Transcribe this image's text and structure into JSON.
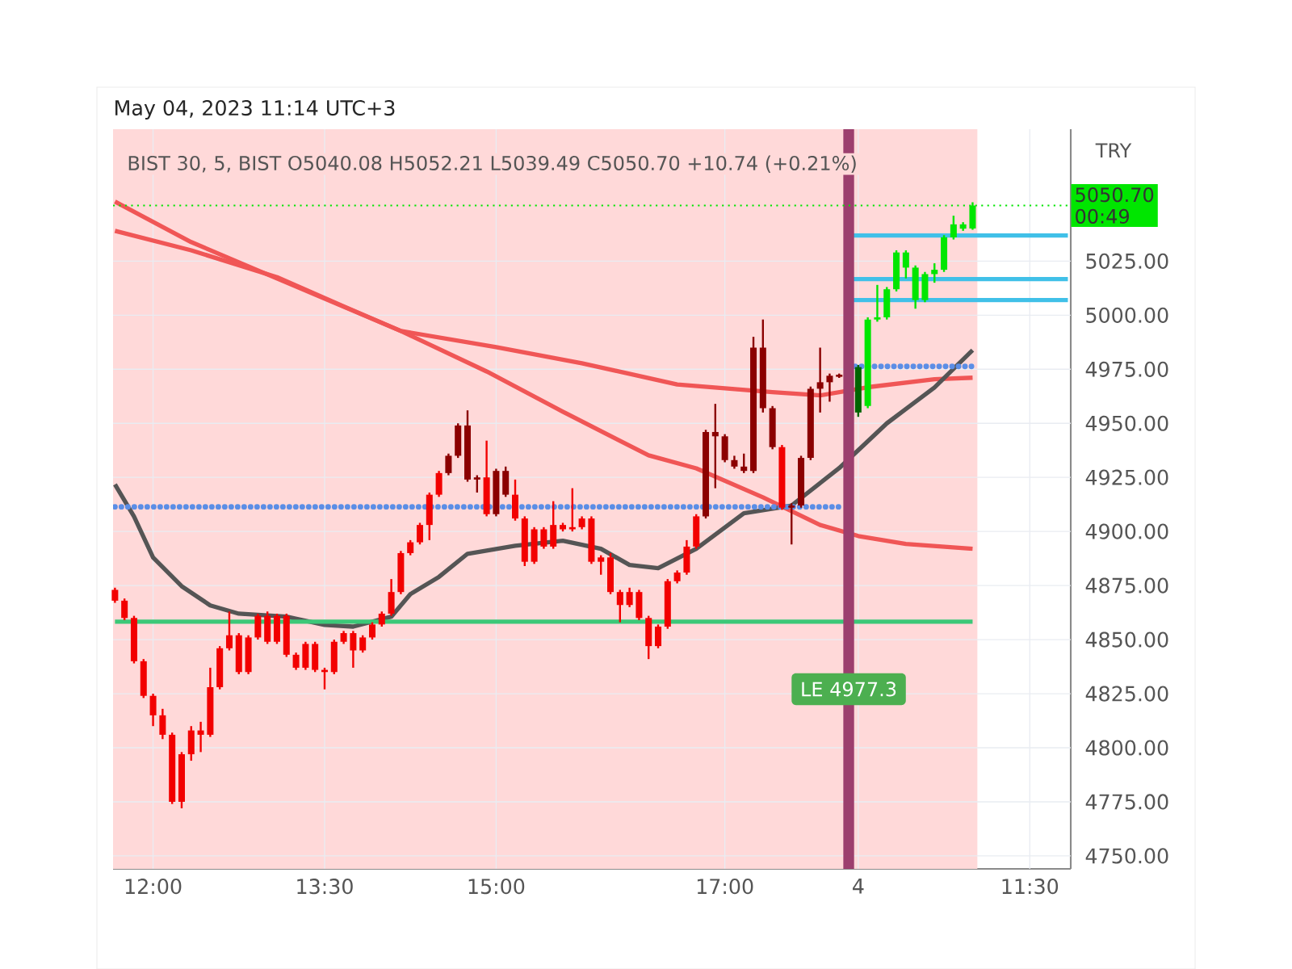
{
  "chart_data": {
    "type": "candlestick",
    "annotations": [
      "May 04, 2023 11:14 UTC+3",
      "BIST 30, 5, BIST  O5040.08  H5052.21  L5039.49  C5050.70  +10.74 (+0.21%)",
      "LE 4977.3",
      "00:49"
    ],
    "ylabel": "TRY",
    "categories": [
      null,
      null,
      null,
      null,
      "12:00",
      null,
      null,
      null,
      null,
      null,
      null,
      null,
      null,
      null,
      null,
      null,
      null,
      null,
      null,
      null,
      null,
      null,
      "13:30",
      null,
      null,
      null,
      null,
      null,
      null,
      null,
      null,
      null,
      null,
      null,
      null,
      null,
      null,
      null,
      null,
      null,
      "15:00",
      null,
      null,
      null,
      null,
      null,
      null,
      null,
      null,
      null,
      null,
      null,
      null,
      null,
      null,
      null,
      null,
      null,
      null,
      null,
      null,
      null,
      null,
      null,
      "17:00",
      null,
      null,
      null,
      null,
      null,
      null,
      null,
      null,
      null,
      null,
      null,
      null,
      null,
      "4",
      null,
      null,
      null,
      null,
      null,
      null,
      null,
      null,
      null,
      null,
      null,
      null,
      null,
      null,
      null,
      null,
      null,
      "11:30",
      null,
      null,
      null,
      null
    ],
    "ohlc": [
      [
        4873,
        4874,
        4867,
        4868
      ],
      [
        4868,
        4869,
        4859,
        4860
      ],
      [
        4860,
        4861,
        4839,
        4840
      ],
      [
        4840,
        4841,
        4823,
        4824
      ],
      [
        4824,
        4825,
        4810,
        4815
      ],
      [
        4815,
        4818,
        4804,
        4806
      ],
      [
        4806,
        4807,
        4774,
        4775
      ],
      [
        4797,
        4798,
        4772,
        4775
      ],
      [
        4808,
        4810,
        4794,
        4797
      ],
      [
        4808,
        4812,
        4798,
        4806
      ],
      [
        4828,
        4837,
        4805,
        4806
      ],
      [
        4846,
        4847,
        4827,
        4828
      ],
      [
        4852,
        4863,
        4845,
        4846
      ],
      [
        4852,
        4853,
        4834,
        4835
      ],
      [
        4851,
        4852,
        4834,
        4835
      ],
      [
        4861,
        4862,
        4850,
        4851
      ],
      [
        4861,
        4863,
        4848,
        4849
      ],
      [
        4861,
        4862,
        4848,
        4849
      ],
      [
        4861,
        4862,
        4842,
        4843
      ],
      [
        4843,
        4844,
        4836,
        4837
      ],
      [
        4848,
        4849,
        4836,
        4837
      ],
      [
        4848,
        4849,
        4835,
        4836
      ],
      [
        4836,
        4837,
        4827,
        4835
      ],
      [
        4849,
        4850,
        4834,
        4835
      ],
      [
        4853,
        4854,
        4848,
        4849
      ],
      [
        4853,
        4854,
        4837,
        4845
      ],
      [
        4851,
        4852,
        4844,
        4845
      ],
      [
        4857,
        4858,
        4850,
        4851
      ],
      [
        4862,
        4863,
        4856,
        4857
      ],
      [
        4872,
        4878,
        4861,
        4862
      ],
      [
        4890,
        4891,
        4871,
        4872
      ],
      [
        4895,
        4896,
        4889,
        4890
      ],
      [
        4903,
        4904,
        4894,
        4895
      ],
      [
        4917,
        4918,
        4896,
        4903
      ],
      [
        4927,
        4928,
        4916,
        4917
      ],
      [
        4927,
        4936,
        4926,
        4935
      ],
      [
        4935,
        4950,
        4934,
        4949
      ],
      [
        4924,
        4956,
        4923,
        4949
      ],
      [
        4924,
        4926,
        4918,
        4925
      ],
      [
        4925,
        4942,
        4907,
        4908
      ],
      [
        4908,
        4929,
        4907,
        4928
      ],
      [
        4917,
        4930,
        4916,
        4928
      ],
      [
        4917,
        4924,
        4905,
        4906
      ],
      [
        4906,
        4907,
        4884,
        4886
      ],
      [
        4901,
        4902,
        4885,
        4886
      ],
      [
        4901,
        4902,
        4892,
        4893
      ],
      [
        4903,
        4914,
        4892,
        4893
      ],
      [
        4903,
        4904,
        4900,
        4901
      ],
      [
        4902,
        4920,
        4900,
        4901
      ],
      [
        4906,
        4907,
        4901,
        4902
      ],
      [
        4906,
        4907,
        4885,
        4886
      ],
      [
        4888,
        4889,
        4880,
        4886
      ],
      [
        4888,
        4890,
        4871,
        4872
      ],
      [
        4872,
        4873,
        4858,
        4866
      ],
      [
        4872,
        4874,
        4865,
        4866
      ],
      [
        4872,
        4873,
        4859,
        4860
      ],
      [
        4860,
        4861,
        4841,
        4847
      ],
      [
        4856,
        4857,
        4846,
        4847
      ],
      [
        4877,
        4878,
        4855,
        4856
      ],
      [
        4881,
        4882,
        4876,
        4877
      ],
      [
        4893,
        4896,
        4880,
        4881
      ],
      [
        4907,
        4908,
        4892,
        4893
      ],
      [
        4907,
        4947,
        4906,
        4946
      ],
      [
        4944,
        4959,
        4920,
        4946
      ],
      [
        4933,
        4945,
        4932,
        4944
      ],
      [
        4930,
        4935,
        4929,
        4933
      ],
      [
        4928,
        4936,
        4927,
        4930
      ],
      [
        4928,
        4990,
        4927,
        4985
      ],
      [
        4957,
        4998,
        4955,
        4985
      ],
      [
        4939,
        4958,
        4938,
        4957
      ],
      [
        4939,
        4940,
        4910,
        4911
      ],
      [
        4911,
        4913,
        4894,
        4912
      ],
      [
        4912,
        4935,
        4911,
        4934
      ],
      [
        4934,
        4967,
        4933,
        4966
      ],
      [
        4966,
        4985,
        4955,
        4969
      ],
      [
        4969,
        4973,
        4960,
        4972
      ],
      [
        4972,
        4973,
        4971,
        4972
      ],
      null,
      [
        4955,
        4977,
        4953,
        4976
      ],
      [
        4958,
        4999,
        4957,
        4998
      ],
      [
        4998,
        5014,
        4997,
        4999
      ],
      [
        4999,
        5013,
        4998,
        5012
      ],
      [
        5012,
        5030,
        5011,
        5029
      ],
      [
        5022,
        5030,
        5017,
        5029
      ],
      [
        5007,
        5023,
        5003,
        5022
      ],
      [
        5007,
        5020,
        5006,
        5019
      ],
      [
        5019,
        5024,
        5015,
        5021
      ],
      [
        5021,
        5037,
        5020,
        5036
      ],
      [
        5036,
        5046,
        5035,
        5042
      ],
      [
        5040,
        5043,
        5039,
        5042
      ],
      [
        5040.08,
        5052.21,
        5039.49,
        5050.7
      ],
      null,
      null,
      null,
      null,
      null,
      null,
      null,
      null,
      null,
      null
    ],
    "colors": [
      "#f20000",
      "#f20000",
      "#f20000",
      "#f20000",
      "#f20000",
      "#f20000",
      "#f20000",
      "#f20000",
      "#f20000",
      "#f20000",
      "#f20000",
      "#f20000",
      "#f20000",
      "#f20000",
      "#f20000",
      "#f20000",
      "#f20000",
      "#f20000",
      "#f20000",
      "#f20000",
      "#f20000",
      "#f20000",
      "#f20000",
      "#f20000",
      "#f20000",
      "#f20000",
      "#f20000",
      "#f20000",
      "#f20000",
      "#f20000",
      "#f20000",
      "#f20000",
      "#f20000",
      "#f20000",
      "#f20000",
      "#8b0000",
      "#8b0000",
      "#8b0000",
      "#8b0000",
      "#f20000",
      "#8b0000",
      "#8b0000",
      "#f20000",
      "#f20000",
      "#f20000",
      "#f20000",
      "#f20000",
      "#f20000",
      "#f20000",
      "#f20000",
      "#f20000",
      "#f20000",
      "#f20000",
      "#f20000",
      "#f20000",
      "#f20000",
      "#f20000",
      "#f20000",
      "#f20000",
      "#f20000",
      "#f20000",
      "#f20000",
      "#8b0000",
      "#8b0000",
      "#8b0000",
      "#8b0000",
      "#8b0000",
      "#8b0000",
      "#8b0000",
      "#8b0000",
      "#f20000",
      "#8b0000",
      "#8b0000",
      "#8b0000",
      "#8b0000",
      "#8b0000",
      "#8b0000",
      null,
      "#006400",
      "#00e600",
      "#00e600",
      "#00e600",
      "#00e600",
      "#00e600",
      "#00e600",
      "#00e600",
      "#00e600",
      "#00e600",
      "#00e600",
      "#00e600",
      "#00e600",
      null,
      null,
      null,
      null,
      null,
      null,
      null,
      null,
      null,
      null
    ],
    "series": [
      {
        "type": "line",
        "color": "#f05656",
        "line_style": "solid",
        "values": [
          5052.5,
          null,
          null,
          null,
          null,
          null,
          null,
          null,
          5033.8,
          null,
          null,
          null,
          null,
          null,
          null,
          null,
          null,
          null,
          5015.1,
          null,
          null,
          null,
          null,
          null,
          null,
          null,
          null,
          null,
          null,
          null,
          4992.7,
          null,
          null,
          null,
          null,
          null,
          null,
          null,
          null,
          null,
          4985.2,
          null,
          null,
          null,
          null,
          null,
          null,
          null,
          null,
          4977.8,
          null,
          null,
          null,
          null,
          null,
          null,
          null,
          null,
          null,
          4968,
          null,
          null,
          null,
          null,
          null,
          null,
          null,
          null,
          null,
          4964.4,
          null,
          null,
          null,
          null,
          4962.9,
          null,
          null,
          null,
          null,
          4966.7,
          null,
          null,
          null,
          null,
          null,
          null,
          4970.4,
          null,
          null,
          null,
          4971.1,
          null,
          null,
          null,
          null,
          null,
          null,
          null,
          null,
          null,
          null
        ]
      },
      {
        "type": "line",
        "color": "#f05656",
        "line_style": "solid",
        "values": [
          5039,
          null,
          null,
          null,
          null,
          null,
          null,
          null,
          5030,
          null,
          null,
          null,
          null,
          null,
          null,
          null,
          null,
          5017.6,
          null,
          null,
          null,
          null,
          null,
          null,
          5004.1,
          null,
          null,
          null,
          null,
          null,
          4992.7,
          null,
          null,
          null,
          null,
          null,
          null,
          null,
          null,
          4974,
          null,
          null,
          null,
          null,
          null,
          null,
          null,
          4955.4,
          null,
          null,
          null,
          null,
          null,
          null,
          null,
          null,
          4935.2,
          null,
          null,
          null,
          null,
          4929.2,
          null,
          null,
          null,
          null,
          null,
          null,
          4915.8,
          null,
          null,
          null,
          null,
          null,
          4903,
          null,
          null,
          null,
          4897.9,
          null,
          null,
          null,
          null,
          4894.2,
          null,
          null,
          null,
          null,
          null,
          null,
          4892,
          null,
          null,
          null,
          null,
          null,
          null,
          null,
          null,
          null,
          null
        ]
      },
      {
        "type": "line",
        "color": "#555555",
        "line_style": "solid",
        "values": [
          4921.8,
          null,
          4906.9,
          null,
          4888,
          null,
          null,
          4874.7,
          null,
          null,
          4865.8,
          null,
          null,
          4862,
          null,
          null,
          null,
          null,
          4860.6,
          null,
          null,
          null,
          4856.8,
          null,
          null,
          4856,
          null,
          null,
          null,
          4860.6,
          null,
          4871,
          null,
          null,
          4879,
          null,
          null,
          4889.7,
          null,
          null,
          null,
          null,
          4893.4,
          null,
          null,
          null,
          null,
          4895.7,
          null,
          null,
          null,
          4892,
          null,
          null,
          4884.5,
          null,
          null,
          4883,
          null,
          null,
          null,
          4892,
          null,
          null,
          null,
          null,
          4908.4,
          null,
          null,
          null,
          null,
          4912,
          null,
          null,
          null,
          null,
          4929.3,
          null,
          null,
          null,
          null,
          4950,
          null,
          null,
          null,
          null,
          4966.6,
          null,
          null,
          null,
          4983.8,
          null,
          null,
          null,
          null,
          null,
          null,
          null,
          null,
          null,
          null
        ]
      },
      {
        "type": "line",
        "color": "#5b8ee6",
        "line_style": "dotted",
        "values": [
          4911.4,
          null,
          null,
          null,
          null,
          null,
          null,
          null,
          null,
          null,
          null,
          null,
          null,
          null,
          null,
          null,
          null,
          null,
          null,
          null,
          null,
          null,
          null,
          null,
          null,
          null,
          null,
          null,
          null,
          null,
          null,
          null,
          null,
          null,
          null,
          null,
          null,
          null,
          null,
          null,
          null,
          null,
          null,
          null,
          null,
          null,
          null,
          null,
          null,
          null,
          null,
          null,
          null,
          null,
          null,
          null,
          null,
          null,
          null,
          null,
          null,
          null,
          null,
          null,
          null,
          null,
          null,
          null,
          null,
          null,
          null,
          null,
          null,
          null,
          null,
          null,
          4911.4,
          null,
          null,
          null,
          null,
          null,
          null,
          null,
          null,
          null,
          null,
          null,
          null,
          null,
          null,
          null,
          null,
          null,
          null,
          null,
          null,
          null,
          null,
          null,
          null
        ]
      },
      {
        "type": "line",
        "color": "#5b8ee6",
        "line_style": "dotted",
        "values": [
          null,
          null,
          null,
          null,
          null,
          null,
          null,
          null,
          null,
          null,
          null,
          null,
          null,
          null,
          null,
          null,
          null,
          null,
          null,
          null,
          null,
          null,
          null,
          null,
          null,
          null,
          null,
          null,
          null,
          null,
          null,
          null,
          null,
          null,
          null,
          null,
          null,
          null,
          null,
          null,
          null,
          null,
          null,
          null,
          null,
          null,
          null,
          null,
          null,
          null,
          null,
          null,
          null,
          null,
          null,
          null,
          null,
          null,
          null,
          null,
          null,
          null,
          null,
          null,
          null,
          null,
          null,
          null,
          null,
          null,
          null,
          null,
          null,
          null,
          null,
          null,
          null,
          4976.3,
          null,
          null,
          null,
          null,
          null,
          null,
          null,
          null,
          null,
          null,
          null,
          null,
          4976.3,
          null,
          null,
          null,
          null,
          null,
          null,
          null,
          null,
          null,
          null
        ]
      },
      {
        "type": "line",
        "color": "#3cc878",
        "line_style": "solid",
        "values": [
          4858.3,
          null,
          null,
          null,
          null,
          null,
          null,
          null,
          null,
          null,
          null,
          null,
          null,
          null,
          null,
          null,
          null,
          null,
          null,
          null,
          null,
          null,
          null,
          null,
          null,
          null,
          null,
          null,
          null,
          null,
          null,
          null,
          null,
          null,
          null,
          null,
          null,
          null,
          null,
          null,
          null,
          null,
          null,
          null,
          null,
          null,
          null,
          null,
          null,
          null,
          null,
          null,
          null,
          null,
          null,
          null,
          null,
          null,
          null,
          null,
          null,
          null,
          null,
          null,
          null,
          null,
          null,
          null,
          null,
          null,
          null,
          null,
          null,
          null,
          null,
          null,
          null,
          null,
          null,
          null,
          null,
          null,
          null,
          null,
          null,
          null,
          null,
          null,
          null,
          null,
          4858.3,
          null,
          null,
          null,
          null,
          null,
          null,
          null,
          null,
          null,
          null
        ]
      },
      {
        "type": "line",
        "color": "#40c0e8",
        "line_style": "solid",
        "values": [
          null,
          null,
          null,
          null,
          null,
          null,
          null,
          null,
          null,
          null,
          null,
          null,
          null,
          null,
          null,
          null,
          null,
          null,
          null,
          null,
          null,
          null,
          null,
          null,
          null,
          null,
          null,
          null,
          null,
          null,
          null,
          null,
          null,
          null,
          null,
          null,
          null,
          null,
          null,
          null,
          null,
          null,
          null,
          null,
          null,
          null,
          null,
          null,
          null,
          null,
          null,
          null,
          null,
          null,
          null,
          null,
          null,
          null,
          null,
          null,
          null,
          null,
          null,
          null,
          null,
          null,
          null,
          null,
          null,
          null,
          null,
          null,
          null,
          null,
          null,
          null,
          null,
          5036.8,
          null,
          null,
          null,
          null,
          null,
          null,
          null,
          null,
          null,
          null,
          null,
          null,
          null,
          null,
          null,
          null,
          null,
          null,
          null,
          null,
          null,
          null,
          5036.8
        ]
      },
      {
        "type": "line",
        "color": "#40c0e8",
        "line_style": "solid",
        "values": [
          null,
          null,
          null,
          null,
          null,
          null,
          null,
          null,
          null,
          null,
          null,
          null,
          null,
          null,
          null,
          null,
          null,
          null,
          null,
          null,
          null,
          null,
          null,
          null,
          null,
          null,
          null,
          null,
          null,
          null,
          null,
          null,
          null,
          null,
          null,
          null,
          null,
          null,
          null,
          null,
          null,
          null,
          null,
          null,
          null,
          null,
          null,
          null,
          null,
          null,
          null,
          null,
          null,
          null,
          null,
          null,
          null,
          null,
          null,
          null,
          null,
          null,
          null,
          null,
          null,
          null,
          null,
          null,
          null,
          null,
          null,
          null,
          null,
          null,
          null,
          null,
          null,
          5016.7,
          null,
          null,
          null,
          null,
          null,
          null,
          null,
          null,
          null,
          null,
          null,
          null,
          null,
          null,
          null,
          null,
          null,
          null,
          null,
          null,
          null,
          null,
          5016.7
        ]
      },
      {
        "type": "line",
        "color": "#40c0e8",
        "line_style": "solid",
        "values": [
          null,
          null,
          null,
          null,
          null,
          null,
          null,
          null,
          null,
          null,
          null,
          null,
          null,
          null,
          null,
          null,
          null,
          null,
          null,
          null,
          null,
          null,
          null,
          null,
          null,
          null,
          null,
          null,
          null,
          null,
          null,
          null,
          null,
          null,
          null,
          null,
          null,
          null,
          null,
          null,
          null,
          null,
          null,
          null,
          null,
          null,
          null,
          null,
          null,
          null,
          null,
          null,
          null,
          null,
          null,
          null,
          null,
          null,
          null,
          null,
          null,
          null,
          null,
          null,
          null,
          null,
          null,
          null,
          null,
          null,
          null,
          null,
          null,
          null,
          null,
          null,
          null,
          5007,
          null,
          null,
          null,
          null,
          null,
          null,
          null,
          null,
          null,
          null,
          null,
          null,
          null,
          null,
          null,
          null,
          null,
          null,
          null,
          null,
          null,
          null,
          5007
        ]
      }
    ],
    "ref_lines": [
      {
        "axis": "y",
        "value": 5050.7,
        "label": "5050.70",
        "color": "#00e600",
        "line_style": "dotted"
      }
    ],
    "ylim": [
      4744,
      5086
    ],
    "yticks": [
      {
        "value": 4750,
        "label": "4750.00"
      },
      {
        "value": 4775,
        "label": "4775.00"
      },
      {
        "value": 4800,
        "label": "4800.00"
      },
      {
        "value": 4825,
        "label": "4825.00"
      },
      {
        "value": 4850,
        "label": "4850.00"
      },
      {
        "value": 4875,
        "label": "4875.00"
      },
      {
        "value": 4900,
        "label": "4900.00"
      },
      {
        "value": 4925,
        "label": "4925.00"
      },
      {
        "value": 4950,
        "label": "4950.00"
      },
      {
        "value": 4975,
        "label": "4975.00"
      },
      {
        "value": 5000,
        "label": "5000.00"
      },
      {
        "value": 5025,
        "label": "5025.00"
      }
    ],
    "grid": true
  }
}
